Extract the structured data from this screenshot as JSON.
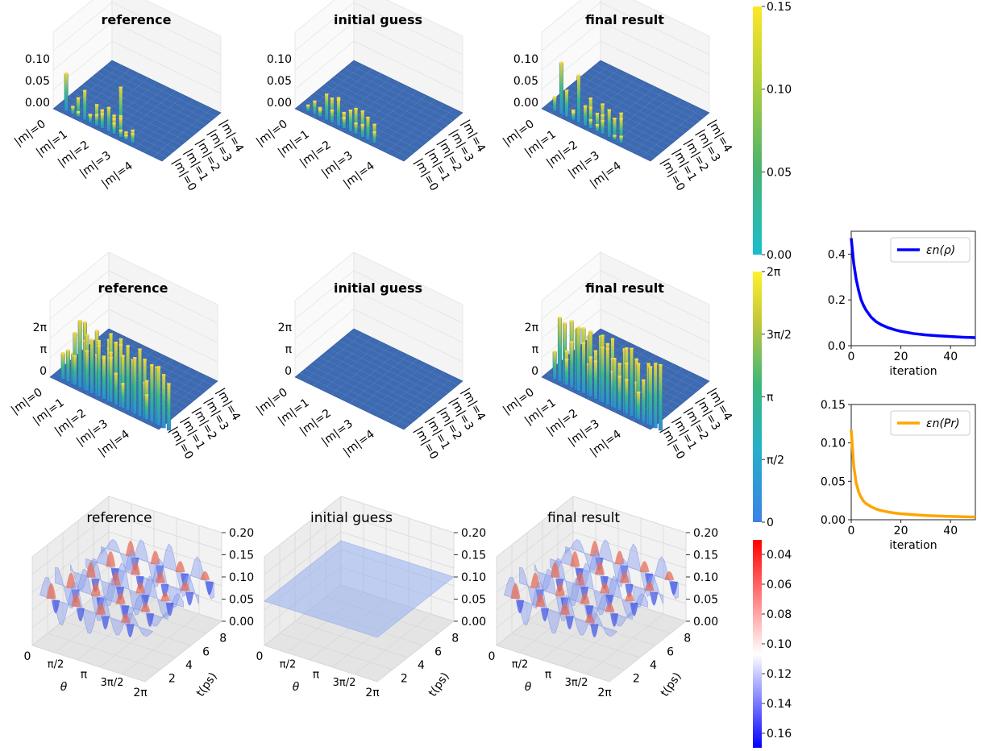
{
  "row1": {
    "titles": [
      "reference",
      "initial guess",
      "final result"
    ],
    "z_ticks": [
      "0.00",
      "0.05",
      "0.10"
    ],
    "row_labels": [
      "|m|=0",
      "|m|=1",
      "|m|=2",
      "|m|=3",
      "|m|=4"
    ],
    "col_labels": [
      "|m|=0",
      "|m|=1",
      "|m|=2",
      "|m|=3",
      "|m|=4"
    ],
    "colorbar": {
      "ticks": [
        "0.00",
        "0.05",
        "0.10",
        "0.15"
      ],
      "colors": [
        "#17becf",
        "#4ab36e",
        "#b3d03a",
        "#fde725"
      ]
    }
  },
  "row2": {
    "titles": [
      "reference",
      "initial guess",
      "final result"
    ],
    "z_ticks": [
      "0",
      "π",
      "2π"
    ],
    "row_labels": [
      "|m|=0",
      "|m|=1",
      "|m|=2",
      "|m|=3",
      "|m|=4"
    ],
    "col_labels": [
      "|m|=0",
      "|m|=1",
      "|m|=2",
      "|m|=3",
      "|m|=4"
    ],
    "colorbar": {
      "ticks": [
        "0",
        "π/2",
        "π",
        "3π/2",
        "2π"
      ],
      "colors": [
        "#3b82e6",
        "#25b0c8",
        "#3bb77a",
        "#c3c83a",
        "#fdf22a"
      ]
    }
  },
  "row3": {
    "titles": [
      "reference",
      "initial guess",
      "final result"
    ],
    "z_ticks": [
      "0.00",
      "0.05",
      "0.10",
      "0.15",
      "0.20"
    ],
    "t_ticks": [
      "2",
      "4",
      "6",
      "8"
    ],
    "t_label": "t(ps)",
    "theta_ticks": [
      "0",
      "π/2",
      "π",
      "3π/2",
      "2π"
    ],
    "theta_label": "θ",
    "colorbar": {
      "ticks": [
        "0.04",
        "0.06",
        "0.08",
        "0.10",
        "0.12",
        "0.14",
        "0.16"
      ],
      "colors": [
        "#0000ff",
        "#ffffff",
        "#ff0000"
      ]
    }
  },
  "chart_data": [
    {
      "type": "line",
      "title": "",
      "xlabel": "iteration",
      "ylabel": "",
      "xlim": [
        0,
        50
      ],
      "ylim": [
        0,
        0.5
      ],
      "x_ticks": [
        "0",
        "20",
        "40"
      ],
      "y_ticks": [
        "0.0",
        "0.2",
        "0.4"
      ],
      "legend_position": "top-right",
      "series": [
        {
          "name": "εn(ρ)",
          "color": "#0000ff",
          "x": [
            0,
            1,
            2,
            3,
            4,
            5,
            6,
            8,
            10,
            12,
            15,
            18,
            20,
            25,
            30,
            35,
            40,
            45,
            50
          ],
          "y": [
            0.47,
            0.36,
            0.29,
            0.24,
            0.2,
            0.175,
            0.155,
            0.125,
            0.105,
            0.092,
            0.078,
            0.068,
            0.063,
            0.053,
            0.047,
            0.043,
            0.04,
            0.037,
            0.035
          ]
        }
      ]
    },
    {
      "type": "line",
      "title": "",
      "xlabel": "iteration",
      "ylabel": "",
      "xlim": [
        0,
        50
      ],
      "ylim": [
        0,
        0.15
      ],
      "x_ticks": [
        "0",
        "20",
        "40"
      ],
      "y_ticks": [
        "0.00",
        "0.05",
        "0.10",
        "0.15"
      ],
      "legend_position": "top-right",
      "series": [
        {
          "name": "εn(Pr)",
          "color": "#ffa500",
          "x": [
            0,
            1,
            2,
            3,
            4,
            5,
            6,
            8,
            10,
            12,
            15,
            18,
            20,
            25,
            30,
            35,
            40,
            45,
            50
          ],
          "y": [
            0.117,
            0.07,
            0.048,
            0.036,
            0.029,
            0.024,
            0.021,
            0.017,
            0.014,
            0.012,
            0.01,
            0.0085,
            0.0078,
            0.0065,
            0.0055,
            0.0048,
            0.0043,
            0.0039,
            0.0035
          ]
        }
      ]
    }
  ]
}
